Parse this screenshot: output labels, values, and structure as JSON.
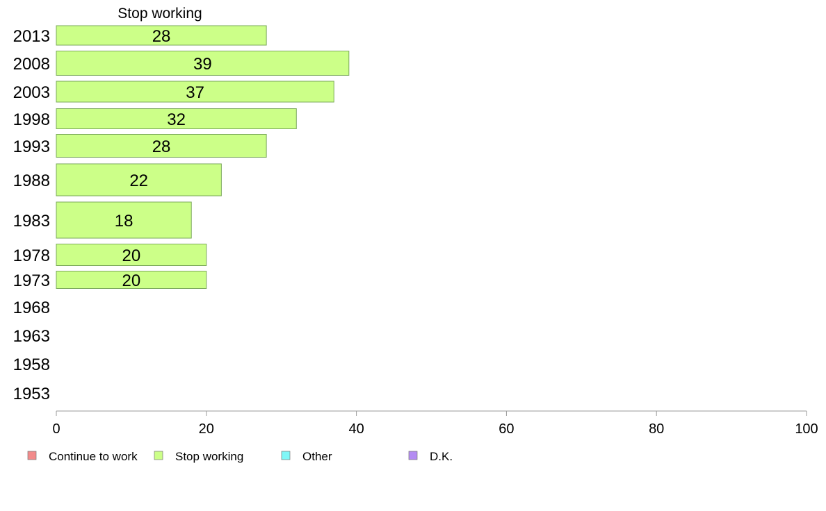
{
  "chart_data": {
    "type": "bar",
    "orientation": "horizontal",
    "title": "",
    "series_title": "Stop working",
    "categories": [
      "2013",
      "2008",
      "2003",
      "1998",
      "1993",
      "1988",
      "1983",
      "1978",
      "1973",
      "1968",
      "1963",
      "1958",
      "1953"
    ],
    "series": [
      {
        "name": "Stop working",
        "values": [
          28,
          39,
          37,
          32,
          28,
          22,
          18,
          20,
          20,
          null,
          null,
          null,
          null
        ]
      }
    ],
    "xlim": [
      0,
      100
    ],
    "xticks": [
      0,
      20,
      40,
      60,
      80,
      100
    ],
    "grid": false,
    "legend": {
      "position": "bottom",
      "items": [
        {
          "label": "Continue to work",
          "color": "#f28b8b"
        },
        {
          "label": "Stop working",
          "color": "#ccff88"
        },
        {
          "label": "Other",
          "color": "#7ff7f7"
        },
        {
          "label": "D.K.",
          "color": "#b48cf2"
        }
      ]
    },
    "bar_color": "#ccff88",
    "bar_stroke": "#7aa85a"
  }
}
